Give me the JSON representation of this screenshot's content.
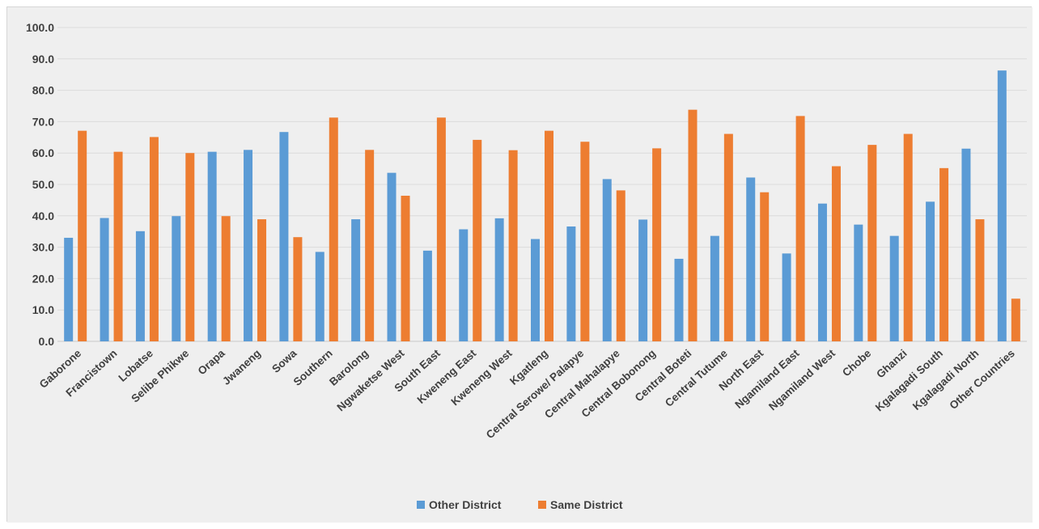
{
  "chart_data": {
    "type": "bar",
    "title": "",
    "xlabel": "",
    "ylabel": "",
    "ylim": [
      0,
      100
    ],
    "yticks": [
      "0.0",
      "10.0",
      "20.0",
      "30.0",
      "40.0",
      "50.0",
      "60.0",
      "70.0",
      "80.0",
      "90.0",
      "100.0"
    ],
    "grid": true,
    "legend_position": "bottom",
    "categories": [
      "Gaborone",
      "Francistown",
      "Lobatse",
      "Selibe Phikwe",
      "Orapa",
      "Jwaneng",
      "Sowa",
      "Southern",
      "Barolong",
      "Ngwaketse West",
      "South East",
      "Kweneng East",
      "Kweneng West",
      "Kgatleng",
      "Central Serowe/ Palapye",
      "Central Mahalapye",
      "Central Bobonong",
      "Central Boteti",
      "Central Tutume",
      "North East",
      "Ngamiland East",
      "Ngamiland West",
      "Chobe",
      "Ghanzi",
      "Kgalagadi South",
      "Kgalagadi North",
      "Other Countries"
    ],
    "series": [
      {
        "name": "Other District",
        "color": "#5b9bd5",
        "values": [
          33.0,
          39.3,
          35.1,
          39.9,
          60.4,
          61.0,
          66.7,
          28.5,
          38.9,
          53.7,
          28.9,
          35.7,
          39.2,
          32.6,
          36.6,
          51.7,
          38.8,
          26.3,
          33.6,
          52.2,
          28.0,
          43.9,
          37.2,
          33.6,
          44.5,
          61.4,
          86.3
        ]
      },
      {
        "name": "Same District",
        "color": "#ed7d31",
        "values": [
          67.1,
          60.4,
          65.1,
          60.0,
          39.9,
          38.9,
          33.2,
          71.3,
          61.0,
          46.4,
          71.3,
          64.2,
          60.9,
          67.1,
          63.6,
          48.1,
          61.5,
          73.8,
          66.1,
          47.5,
          71.8,
          55.8,
          62.6,
          66.1,
          55.2,
          38.9,
          13.6
        ]
      }
    ]
  }
}
